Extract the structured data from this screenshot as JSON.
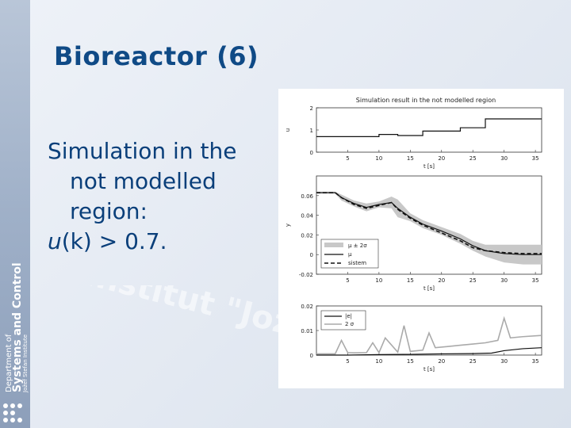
{
  "slide": {
    "title": "Bioreactor (6)",
    "body_line1": "Simulation in the",
    "body_line2": "not modelled",
    "body_line3": "region:",
    "body_line4_var": "u",
    "body_line4_rest": "(k) > 0.7."
  },
  "sidebar": {
    "logo_text_1": "Department of",
    "logo_text_2": "Systems and Control",
    "logo_text_3": "Jožef Stefan Institute"
  },
  "watermark_text": "Institut \"Jožef Stefan\"",
  "colors": {
    "title": "#0f4a86",
    "body": "#0a3f7a",
    "band": "#c8c8c8"
  },
  "chart_data": [
    {
      "type": "line",
      "title": "Simulation result in the not modelled region",
      "ylabel": "u",
      "xlabel": "t [s]",
      "xlim": [
        0,
        36
      ],
      "ylim": [
        0,
        2
      ],
      "xticks": [
        "5",
        "10",
        "15",
        "20",
        "25",
        "30",
        "35"
      ],
      "yticks": [
        "0",
        "1",
        "2"
      ],
      "series": [
        {
          "steps": [
            [
              0,
              0.7
            ],
            [
              6,
              0.7
            ],
            [
              6,
              0.7
            ],
            [
              10,
              0.7
            ],
            [
              10,
              0.8
            ],
            [
              13,
              0.8
            ],
            [
              13,
              0.75
            ],
            [
              17,
              0.75
            ],
            [
              17,
              0.95
            ],
            [
              23,
              0.95
            ],
            [
              23,
              1.1
            ],
            [
              27,
              1.1
            ],
            [
              27,
              1.5
            ],
            [
              36,
              1.5
            ]
          ]
        }
      ]
    },
    {
      "type": "line",
      "xlabel": "t [s]",
      "ylabel": "y",
      "xlim": [
        0,
        36
      ],
      "ylim": [
        -0.02,
        0.08
      ],
      "xticks": [
        "5",
        "10",
        "15",
        "20",
        "25",
        "30",
        "35"
      ],
      "yticks": [
        "-0.02",
        "0",
        "0.02",
        "0.04",
        "0.06"
      ],
      "legend": [
        "μ ± 2σ",
        "μ",
        "sistem"
      ],
      "series": [
        {
          "name": "μ",
          "x": [
            0,
            3,
            4,
            6,
            8,
            10,
            12,
            13,
            15,
            17,
            20,
            23,
            25,
            27,
            30,
            33,
            36
          ],
          "y": [
            0.063,
            0.063,
            0.058,
            0.052,
            0.048,
            0.051,
            0.053,
            0.047,
            0.038,
            0.031,
            0.024,
            0.016,
            0.009,
            0.004,
            0.001,
            0.0,
            0.0
          ]
        },
        {
          "name": "sistem",
          "x": [
            0,
            3,
            4,
            6,
            8,
            10,
            12,
            13,
            15,
            17,
            20,
            23,
            25,
            27,
            30,
            33,
            36
          ],
          "y": [
            0.063,
            0.063,
            0.058,
            0.051,
            0.047,
            0.05,
            0.053,
            0.046,
            0.037,
            0.03,
            0.022,
            0.014,
            0.007,
            0.004,
            0.002,
            0.001,
            0.001
          ]
        },
        {
          "name": "μ ± 2σ",
          "x": [
            0,
            3,
            4,
            6,
            8,
            10,
            12,
            13,
            15,
            17,
            20,
            23,
            25,
            27,
            30,
            33,
            36
          ],
          "half_width": [
            0.001,
            0.001,
            0.003,
            0.003,
            0.004,
            0.003,
            0.006,
            0.009,
            0.004,
            0.004,
            0.004,
            0.005,
            0.005,
            0.006,
            0.009,
            0.01,
            0.01
          ]
        }
      ]
    },
    {
      "type": "line",
      "xlabel": "t [s]",
      "xlim": [
        0,
        36
      ],
      "ylim": [
        0,
        0.02
      ],
      "xticks": [
        "5",
        "10",
        "15",
        "20",
        "25",
        "30",
        "35"
      ],
      "yticks": [
        "0",
        "0.01",
        "0.02"
      ],
      "legend": [
        "|e|",
        "2 σ"
      ],
      "series": [
        {
          "name": "|e|",
          "x": [
            0,
            5,
            10,
            15,
            20,
            25,
            28,
            30,
            33,
            36
          ],
          "y": [
            0,
            0,
            0.0002,
            0.0003,
            0.0005,
            0.0006,
            0.0008,
            0.0018,
            0.0026,
            0.003
          ]
        },
        {
          "name": "2 σ",
          "x": [
            0,
            3,
            4,
            5,
            6,
            8,
            9,
            10,
            11,
            13,
            14,
            15,
            17,
            18,
            19,
            21,
            23,
            25,
            27,
            29,
            30,
            31,
            33,
            36
          ],
          "y": [
            0.0005,
            0.0005,
            0.006,
            0.001,
            0.0009,
            0.001,
            0.005,
            0.001,
            0.007,
            0.0012,
            0.012,
            0.0015,
            0.002,
            0.009,
            0.003,
            0.0035,
            0.004,
            0.0045,
            0.005,
            0.006,
            0.015,
            0.007,
            0.0075,
            0.008
          ]
        }
      ]
    }
  ]
}
